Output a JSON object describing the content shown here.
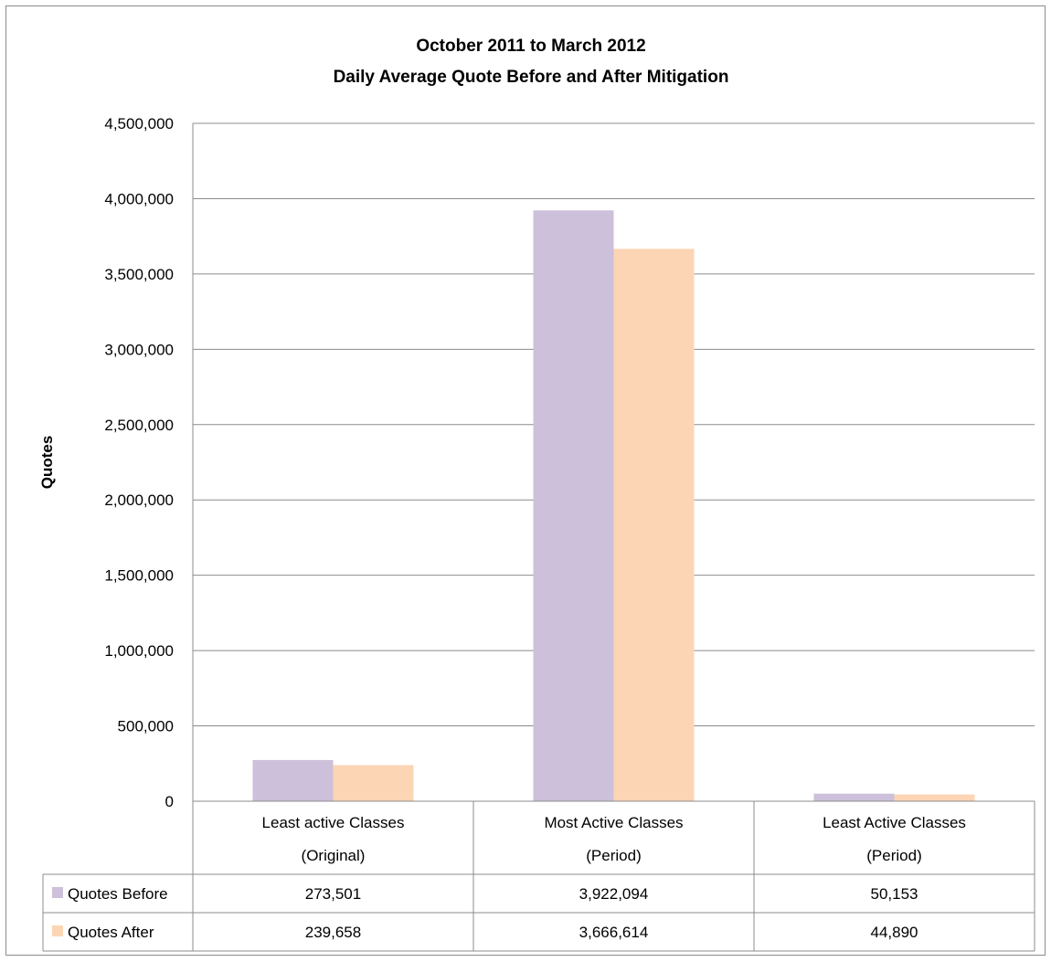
{
  "chart_data": {
    "type": "bar",
    "title_lines": [
      "October 2011 to March 2012",
      "Daily Average Quote Before and After Mitigation"
    ],
    "ylabel": "Quotes",
    "xlabel": "",
    "ylim": [
      0,
      4500000
    ],
    "y_ticks": [
      0,
      500000,
      1000000,
      1500000,
      2000000,
      2500000,
      3000000,
      3500000,
      4000000,
      4500000
    ],
    "y_tick_labels": [
      "0",
      "500,000",
      "1,000,000",
      "1,500,000",
      "2,000,000",
      "2,500,000",
      "3,000,000",
      "3,500,000",
      "4,000,000",
      "4,500,000"
    ],
    "categories": [
      [
        "Least active Classes",
        "(Original)"
      ],
      [
        "Most Active Classes",
        "(Period)"
      ],
      [
        "Least Active Classes",
        "(Period)"
      ]
    ],
    "series": [
      {
        "name": "Quotes Before",
        "color": "#ccc0da",
        "values": [
          273501,
          3922094,
          50153
        ],
        "value_labels": [
          "273,501",
          "3,922,094",
          "50,153"
        ]
      },
      {
        "name": "Quotes After",
        "color": "#fcd5b5",
        "values": [
          239658,
          3666614,
          44890
        ],
        "value_labels": [
          "239,658",
          "3,666,614",
          "44,890"
        ]
      }
    ],
    "grid": true,
    "legend": "data-table"
  }
}
